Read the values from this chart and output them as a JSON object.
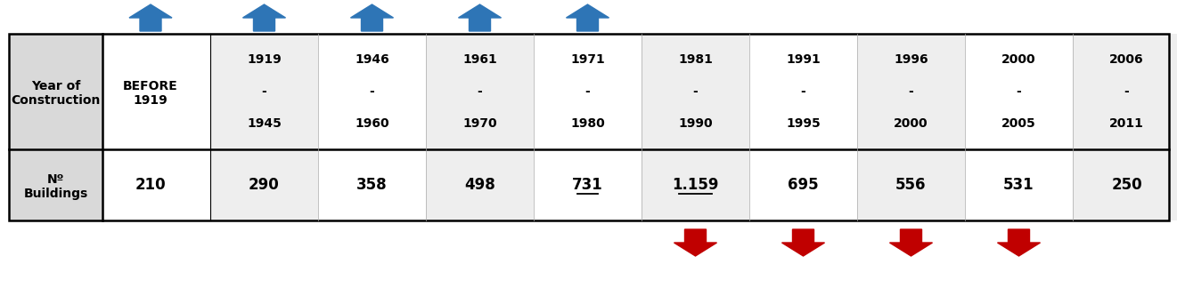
{
  "values": [
    "210",
    "290",
    "358",
    "498",
    "731",
    "1.159",
    "695",
    "556",
    "531",
    "250"
  ],
  "underlined_indices": [
    4,
    5
  ],
  "period_headers": [
    [
      "1919",
      "-",
      "1945"
    ],
    [
      "1946",
      "-",
      "1960"
    ],
    [
      "1961",
      "-",
      "1970"
    ],
    [
      "1971",
      "-",
      "1980"
    ],
    [
      "1981",
      "-",
      "1990"
    ],
    [
      "1991",
      "-",
      "1995"
    ],
    [
      "1996",
      "-",
      "2000"
    ],
    [
      "2000",
      "-",
      "2005"
    ],
    [
      "2006",
      "-",
      "2011"
    ]
  ],
  "up_arrow_color": "#2E75B6",
  "down_arrow_color": "#C00000",
  "label_bg": "#D9D9D9",
  "alt_col_bg": "#EEEEEE",
  "white_bg": "#FFFFFF",
  "border_color": "#000000",
  "text_color": "#000000",
  "fig_width": 13.21,
  "fig_height": 3.24,
  "dpi": 100
}
